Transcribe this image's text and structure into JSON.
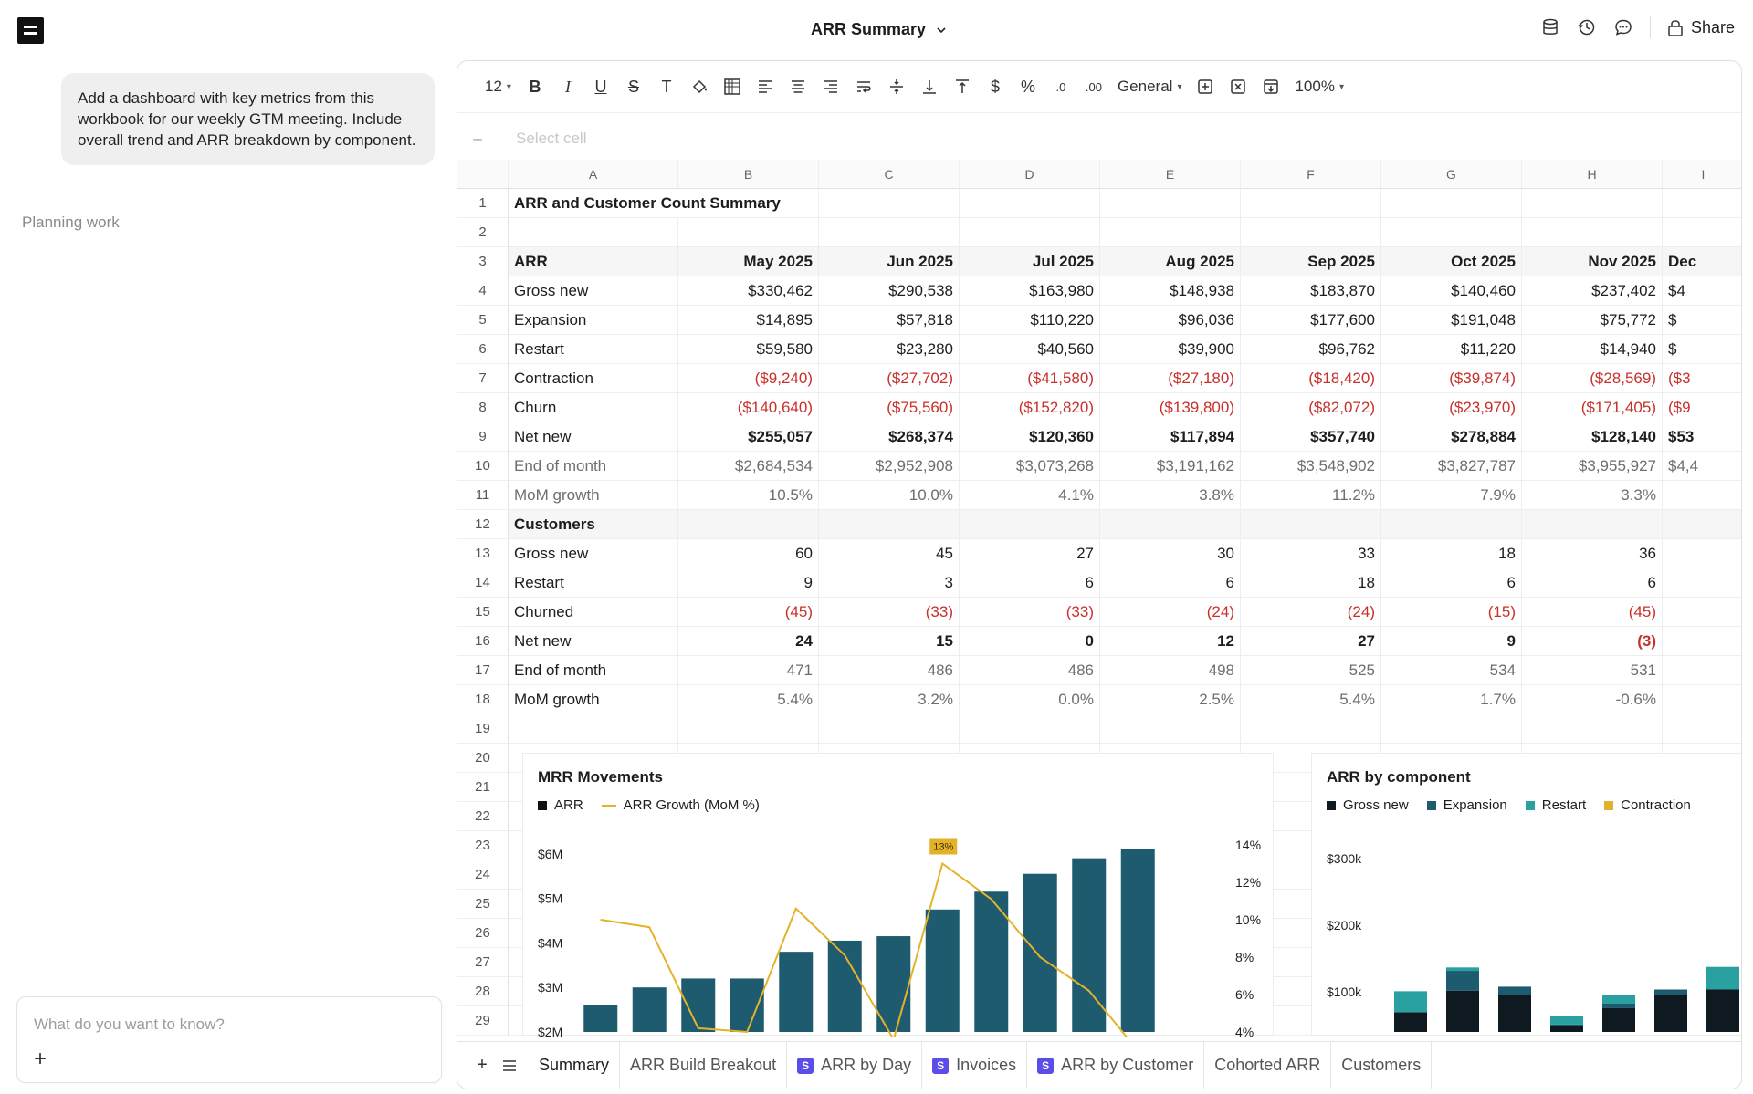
{
  "header": {
    "title": "ARR Summary",
    "share_label": "Share"
  },
  "chat": {
    "message": "Add a dashboard with key metrics from this workbook for our weekly GTM meeting. Include overall trend and ARR breakdown by component.",
    "status": "Planning work",
    "input_placeholder": "What do you want to know?"
  },
  "toolbar": {
    "font_size": "12",
    "number_format": "General",
    "zoom": "100%"
  },
  "formula_bar": {
    "cell_ref": "–",
    "placeholder": "Select cell"
  },
  "columns": [
    "A",
    "B",
    "C",
    "D",
    "E",
    "F",
    "G",
    "H",
    "I"
  ],
  "rows": [
    {
      "n": "1",
      "label": "ARR and Customer Count Summary",
      "style": "bold",
      "vals": []
    },
    {
      "n": "2",
      "label": "",
      "style": "",
      "vals": []
    },
    {
      "n": "3",
      "label": "ARR",
      "style": "hdr",
      "vals": [
        "May 2025",
        "Jun 2025",
        "Jul 2025",
        "Aug 2025",
        "Sep 2025",
        "Oct 2025",
        "Nov 2025",
        "Dec"
      ]
    },
    {
      "n": "4",
      "label": "Gross new",
      "style": "",
      "vals": [
        "$330,462",
        "$290,538",
        "$163,980",
        "$148,938",
        "$183,870",
        "$140,460",
        "$237,402",
        "$4"
      ]
    },
    {
      "n": "5",
      "label": "Expansion",
      "style": "",
      "vals": [
        "$14,895",
        "$57,818",
        "$110,220",
        "$96,036",
        "$177,600",
        "$191,048",
        "$75,772",
        "$"
      ]
    },
    {
      "n": "6",
      "label": "Restart",
      "style": "",
      "vals": [
        "$59,580",
        "$23,280",
        "$40,560",
        "$39,900",
        "$96,762",
        "$11,220",
        "$14,940",
        "$"
      ]
    },
    {
      "n": "7",
      "label": "Contraction",
      "style": "neg",
      "vals": [
        "($9,240)",
        "($27,702)",
        "($41,580)",
        "($27,180)",
        "($18,420)",
        "($39,874)",
        "($28,569)",
        "($3"
      ]
    },
    {
      "n": "8",
      "label": "Churn",
      "style": "neg",
      "vals": [
        "($140,640)",
        "($75,560)",
        "($152,820)",
        "($139,800)",
        "($82,072)",
        "($23,970)",
        "($171,405)",
        "($9"
      ]
    },
    {
      "n": "9",
      "label": "Net new",
      "style": "boldvals",
      "vals": [
        "$255,057",
        "$268,374",
        "$120,360",
        "$117,894",
        "$357,740",
        "$278,884",
        "$128,140",
        "$53"
      ]
    },
    {
      "n": "10",
      "label": "End of month",
      "style": "muted",
      "vals": [
        "$2,684,534",
        "$2,952,908",
        "$3,073,268",
        "$3,191,162",
        "$3,548,902",
        "$3,827,787",
        "$3,955,927",
        "$4,4"
      ]
    },
    {
      "n": "11",
      "label": "MoM growth",
      "style": "muted",
      "vals": [
        "10.5%",
        "10.0%",
        "4.1%",
        "3.8%",
        "11.2%",
        "7.9%",
        "3.3%",
        ""
      ]
    },
    {
      "n": "12",
      "label": "Customers",
      "style": "hdr",
      "vals": []
    },
    {
      "n": "13",
      "label": "Gross new",
      "style": "",
      "vals": [
        "60",
        "45",
        "27",
        "30",
        "33",
        "18",
        "36",
        ""
      ]
    },
    {
      "n": "14",
      "label": "Restart",
      "style": "",
      "vals": [
        "9",
        "3",
        "6",
        "6",
        "18",
        "6",
        "6",
        ""
      ]
    },
    {
      "n": "15",
      "label": "Churned",
      "style": "neg",
      "vals": [
        "(45)",
        "(33)",
        "(33)",
        "(24)",
        "(24)",
        "(15)",
        "(45)",
        ""
      ]
    },
    {
      "n": "16",
      "label": "Net new",
      "style": "boldvals",
      "vals": [
        "24",
        "15",
        "0",
        "12",
        "27",
        "9",
        "(3)",
        ""
      ]
    },
    {
      "n": "17",
      "label": "End of month",
      "style": "mutedvals",
      "vals": [
        "471",
        "486",
        "486",
        "498",
        "525",
        "534",
        "531",
        ""
      ]
    },
    {
      "n": "18",
      "label": "MoM growth",
      "style": "mutedvals",
      "vals": [
        "5.4%",
        "3.2%",
        "0.0%",
        "2.5%",
        "5.4%",
        "1.7%",
        "-0.6%",
        ""
      ]
    },
    {
      "n": "19",
      "label": "",
      "style": "",
      "vals": []
    },
    {
      "n": "20",
      "label": "",
      "style": "",
      "vals": []
    },
    {
      "n": "21",
      "label": "",
      "style": "",
      "vals": []
    },
    {
      "n": "22",
      "label": "",
      "style": "",
      "vals": []
    },
    {
      "n": "23",
      "label": "",
      "style": "",
      "vals": []
    },
    {
      "n": "24",
      "label": "",
      "style": "",
      "vals": []
    },
    {
      "n": "25",
      "label": "",
      "style": "",
      "vals": []
    },
    {
      "n": "26",
      "label": "",
      "style": "",
      "vals": []
    },
    {
      "n": "27",
      "label": "",
      "style": "",
      "vals": []
    },
    {
      "n": "28",
      "label": "",
      "style": "",
      "vals": []
    },
    {
      "n": "29",
      "label": "",
      "style": "",
      "vals": []
    }
  ],
  "chart_data": [
    {
      "type": "bar",
      "title": "MRR Movements",
      "legend": [
        "ARR",
        "ARR Growth (MoM  %)"
      ],
      "y_ticks": [
        "$6M",
        "$5M",
        "$4M",
        "$3M",
        "$2M"
      ],
      "y2_ticks": [
        "14%",
        "12%",
        "10%",
        "8%",
        "6%",
        "4%"
      ],
      "ylim": [
        2,
        6.2
      ],
      "y2lim": [
        4,
        14
      ],
      "bars": [
        2.6,
        3.0,
        3.2,
        3.2,
        3.8,
        4.05,
        4.15,
        4.75,
        5.15,
        5.55,
        5.9,
        6.1
      ],
      "growth": [
        10.0,
        9.6,
        4.2,
        4.0,
        10.6,
        8.1,
        3.6,
        13.0,
        11.1,
        8.0,
        6.2,
        3.0
      ],
      "annotation": "13%",
      "colors": {
        "bar": "#1e5b6e",
        "line": "#e4b22a"
      }
    },
    {
      "type": "bar",
      "title": "ARR by component",
      "legend": [
        "Gross new",
        "Expansion",
        "Restart",
        "Contraction"
      ],
      "y_ticks": [
        "$300k",
        "$200k",
        "$100k"
      ],
      "ylim": [
        0,
        300
      ],
      "series": [
        {
          "name": "Gross new",
          "values": [
            35,
            73,
            65,
            10,
            42,
            65,
            75
          ]
        },
        {
          "name": "Expansion",
          "values": [
            0,
            35,
            15,
            3,
            8,
            10,
            0
          ]
        },
        {
          "name": "Restart",
          "values": [
            37,
            6,
            0,
            16,
            15,
            0,
            40
          ]
        }
      ],
      "colors": {
        "Gross new": "#0f1a20",
        "Expansion": "#1e5b6e",
        "Restart": "#2aa1a1",
        "Contraction": "#e4b22a"
      }
    }
  ],
  "tabs": [
    {
      "label": "Summary",
      "badge": "",
      "active": true
    },
    {
      "label": "ARR Build Breakout",
      "badge": ""
    },
    {
      "label": "ARR by Day",
      "badge": "S"
    },
    {
      "label": "Invoices",
      "badge": "S"
    },
    {
      "label": "ARR by Customer",
      "badge": "S"
    },
    {
      "label": "Cohorted ARR",
      "badge": ""
    },
    {
      "label": "Customers",
      "badge": ""
    }
  ]
}
